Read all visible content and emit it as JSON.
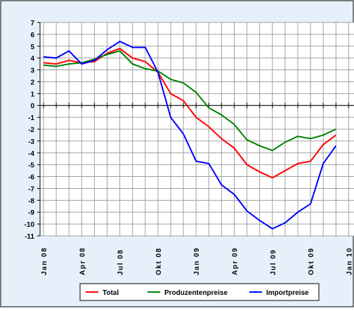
{
  "chart_data": {
    "type": "line",
    "categories": [
      "Jan 08",
      null,
      null,
      "Apr 08",
      null,
      null,
      "Jul 08",
      null,
      null,
      "Okt 08",
      null,
      null,
      "Jan 09",
      null,
      null,
      "Apr 09",
      null,
      null,
      "Jul 09",
      null,
      null,
      "Okt 09",
      null,
      null,
      "Jan 10"
    ],
    "series": [
      {
        "name": "Total",
        "color": "#ff0000",
        "values": [
          3.6,
          3.5,
          3.8,
          3.6,
          3.7,
          4.4,
          4.8,
          4.0,
          3.7,
          2.8,
          1.0,
          0.4,
          -1.0,
          -1.8,
          -2.8,
          -3.6,
          -5.0,
          -5.6,
          -6.1,
          -5.5,
          -4.9,
          -4.7,
          -3.3,
          -2.5,
          null
        ]
      },
      {
        "name": "Produzentenpreise",
        "color": "#008000",
        "values": [
          3.4,
          3.3,
          3.5,
          3.6,
          3.9,
          4.3,
          4.6,
          3.5,
          3.1,
          2.9,
          2.2,
          1.9,
          1.1,
          -0.2,
          -0.8,
          -1.6,
          -2.9,
          -3.4,
          -3.8,
          -3.1,
          -2.6,
          -2.8,
          -2.5,
          -2.0,
          null
        ]
      },
      {
        "name": "Importpreise",
        "color": "#0000ff",
        "values": [
          4.1,
          4.0,
          4.6,
          3.5,
          3.8,
          4.7,
          5.4,
          4.9,
          4.9,
          2.8,
          -1.0,
          -2.4,
          -4.7,
          -4.9,
          -6.7,
          -7.5,
          -8.9,
          -9.7,
          -10.4,
          -9.9,
          -9.0,
          -8.3,
          -4.9,
          -3.4,
          null
        ]
      }
    ],
    "ylim": [
      -11,
      7
    ],
    "yticks": [
      -11,
      -10,
      -9,
      -8,
      -7,
      -6,
      -5,
      -4,
      -3,
      -2,
      -1,
      0,
      1,
      2,
      3,
      4,
      5,
      6,
      7
    ],
    "grid": true
  }
}
